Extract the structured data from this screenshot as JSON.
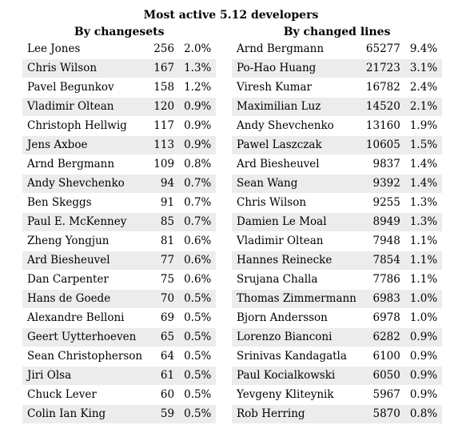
{
  "title": "Most active 5.12 developers",
  "by_changesets": {
    "header": "By changesets",
    "rows": [
      {
        "name": "Lee Jones",
        "count": "256",
        "pct": "2.0%"
      },
      {
        "name": "Chris Wilson",
        "count": "167",
        "pct": "1.3%"
      },
      {
        "name": "Pavel Begunkov",
        "count": "158",
        "pct": "1.2%"
      },
      {
        "name": "Vladimir Oltean",
        "count": "120",
        "pct": "0.9%"
      },
      {
        "name": "Christoph Hellwig",
        "count": "117",
        "pct": "0.9%"
      },
      {
        "name": "Jens Axboe",
        "count": "113",
        "pct": "0.9%"
      },
      {
        "name": "Arnd Bergmann",
        "count": "109",
        "pct": "0.8%"
      },
      {
        "name": "Andy Shevchenko",
        "count": "94",
        "pct": "0.7%"
      },
      {
        "name": "Ben Skeggs",
        "count": "91",
        "pct": "0.7%"
      },
      {
        "name": "Paul E. McKenney",
        "count": "85",
        "pct": "0.7%"
      },
      {
        "name": "Zheng Yongjun",
        "count": "81",
        "pct": "0.6%"
      },
      {
        "name": "Ard Biesheuvel",
        "count": "77",
        "pct": "0.6%"
      },
      {
        "name": "Dan Carpenter",
        "count": "75",
        "pct": "0.6%"
      },
      {
        "name": "Hans de Goede",
        "count": "70",
        "pct": "0.5%"
      },
      {
        "name": "Alexandre Belloni",
        "count": "69",
        "pct": "0.5%"
      },
      {
        "name": "Geert Uytterhoeven",
        "count": "65",
        "pct": "0.5%"
      },
      {
        "name": "Sean Christopherson",
        "count": "64",
        "pct": "0.5%"
      },
      {
        "name": "Jiri Olsa",
        "count": "61",
        "pct": "0.5%"
      },
      {
        "name": "Chuck Lever",
        "count": "60",
        "pct": "0.5%"
      },
      {
        "name": "Colin Ian King",
        "count": "59",
        "pct": "0.5%"
      }
    ]
  },
  "by_changed_lines": {
    "header": "By changed lines",
    "rows": [
      {
        "name": "Arnd Bergmann",
        "count": "65277",
        "pct": "9.4%"
      },
      {
        "name": "Po-Hao Huang",
        "count": "21723",
        "pct": "3.1%"
      },
      {
        "name": "Viresh Kumar",
        "count": "16782",
        "pct": "2.4%"
      },
      {
        "name": "Maximilian Luz",
        "count": "14520",
        "pct": "2.1%"
      },
      {
        "name": "Andy Shevchenko",
        "count": "13160",
        "pct": "1.9%"
      },
      {
        "name": "Pawel Laszczak",
        "count": "10605",
        "pct": "1.5%"
      },
      {
        "name": "Ard Biesheuvel",
        "count": "9837",
        "pct": "1.4%"
      },
      {
        "name": "Sean Wang",
        "count": "9392",
        "pct": "1.4%"
      },
      {
        "name": "Chris Wilson",
        "count": "9255",
        "pct": "1.3%"
      },
      {
        "name": "Damien Le Moal",
        "count": "8949",
        "pct": "1.3%"
      },
      {
        "name": "Vladimir Oltean",
        "count": "7948",
        "pct": "1.1%"
      },
      {
        "name": "Hannes Reinecke",
        "count": "7854",
        "pct": "1.1%"
      },
      {
        "name": "Srujana Challa",
        "count": "7786",
        "pct": "1.1%"
      },
      {
        "name": "Thomas Zimmermann",
        "count": "6983",
        "pct": "1.0%"
      },
      {
        "name": "Bjorn Andersson",
        "count": "6978",
        "pct": "1.0%"
      },
      {
        "name": "Lorenzo Bianconi",
        "count": "6282",
        "pct": "0.9%"
      },
      {
        "name": "Srinivas Kandagatla",
        "count": "6100",
        "pct": "0.9%"
      },
      {
        "name": "Paul Kocialkowski",
        "count": "6050",
        "pct": "0.9%"
      },
      {
        "name": "Yevgeny Kliteynik",
        "count": "5967",
        "pct": "0.9%"
      },
      {
        "name": "Rob Herring",
        "count": "5870",
        "pct": "0.8%"
      }
    ]
  }
}
